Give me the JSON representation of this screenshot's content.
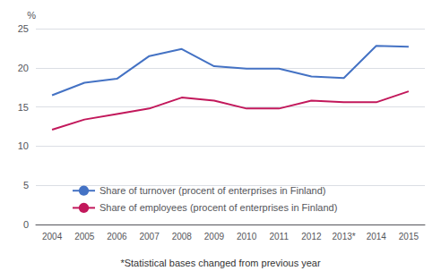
{
  "chart_data": {
    "type": "line",
    "categories": [
      "2004",
      "2005",
      "2006",
      "2007",
      "2008",
      "2009",
      "2010",
      "2011",
      "2012",
      "2013*",
      "2014",
      "2015"
    ],
    "series": [
      {
        "name": "Share of turnover (procent of enterprises in Finland)",
        "color": "#4472C4",
        "values": [
          16.5,
          18.1,
          18.6,
          21.5,
          22.4,
          20.2,
          19.9,
          19.9,
          18.9,
          18.7,
          22.8,
          22.7
        ]
      },
      {
        "name": "Share of employees (procent of enterprises in Finland)",
        "color": "#C2185B",
        "values": [
          12.1,
          13.4,
          14.1,
          14.8,
          16.2,
          15.8,
          14.8,
          14.8,
          15.8,
          15.6,
          15.6,
          17.0
        ]
      }
    ],
    "ylabel": "%",
    "ylim": [
      0,
      25
    ],
    "yticks": [
      0,
      5,
      10,
      15,
      20,
      25
    ],
    "grid": true,
    "legend": "lower left",
    "annotations": [
      "*Statistical bases changed from previous year"
    ]
  }
}
